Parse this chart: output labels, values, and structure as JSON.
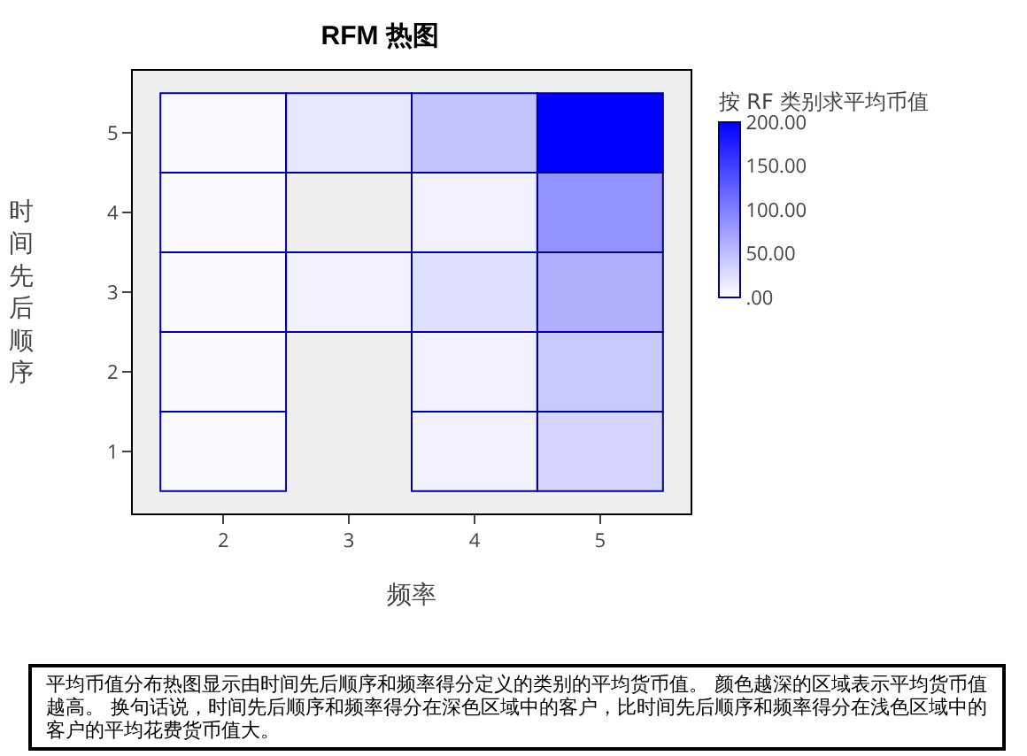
{
  "chart_data": {
    "type": "heatmap",
    "title": "RFM 热图",
    "xlabel": "频率",
    "ylabel": "时间先后顺序",
    "clabel": "按 RF 类别求平均币值",
    "categories": [
      "2",
      "3",
      "4",
      "5"
    ],
    "y_categories": [
      "5",
      "4",
      "3",
      "2",
      "1"
    ],
    "cells": [
      [
        5,
        20,
        47,
        200
      ],
      [
        5,
        null,
        12,
        85
      ],
      [
        5,
        10,
        25,
        62
      ],
      [
        5,
        null,
        12,
        43
      ],
      [
        5,
        null,
        10,
        33
      ]
    ],
    "clim": [
      0,
      200
    ],
    "cticks": [
      {
        "value": 0,
        "label": ".00"
      },
      {
        "value": 50,
        "label": "50.00"
      },
      {
        "value": 100,
        "label": "100.00"
      },
      {
        "value": 150,
        "label": "150.00"
      },
      {
        "value": 200,
        "label": "200.00"
      }
    ],
    "annotations": [
      "平均币值分布热图显示由时间先后顺序和频率得分定义的类别的平均货币值。 颜色越深的区域表示平均货币值越高。 换句话说，时间先后顺序和频率得分在深色区域中的客户，比时间先后顺序和频率得分在浅色区域中的客户的平均花费货币值大。"
    ]
  }
}
